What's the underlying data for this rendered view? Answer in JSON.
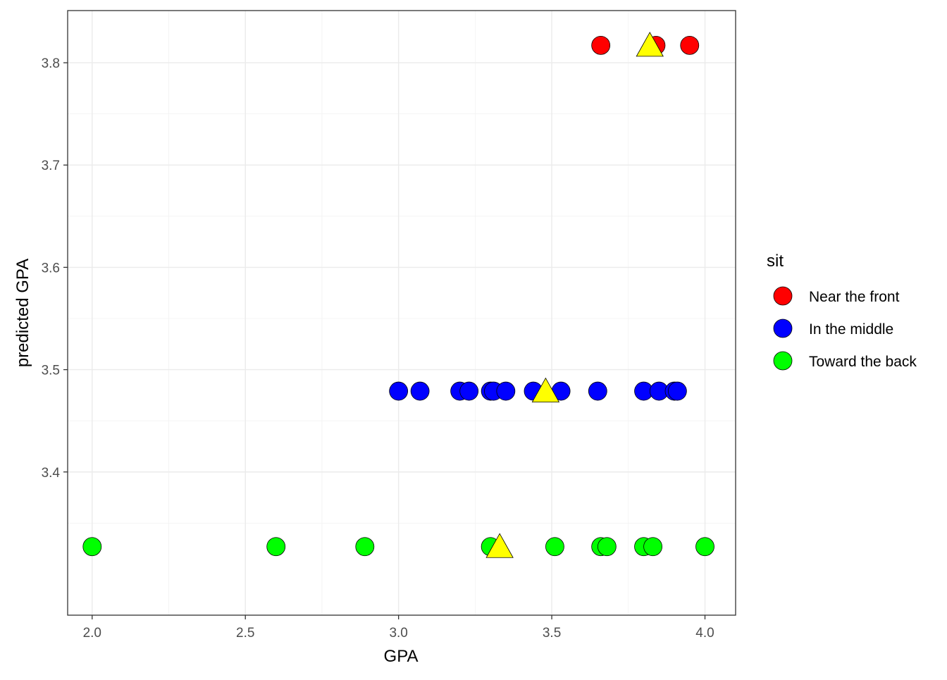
{
  "chart_data": {
    "type": "scatter",
    "title": "",
    "xlabel": "GPA",
    "ylabel": "predicted GPA",
    "xlim": [
      1.92,
      4.1
    ],
    "ylim": [
      3.26,
      3.851
    ],
    "xticks": [
      2.0,
      2.5,
      3.0,
      3.5,
      4.0
    ],
    "xtick_labels": [
      "2.0",
      "2.5",
      "3.0",
      "3.5",
      "4.0"
    ],
    "yticks": [
      3.4,
      3.5,
      3.6,
      3.7,
      3.8
    ],
    "ytick_labels": [
      "3.4",
      "3.5",
      "3.6",
      "3.7",
      "3.8"
    ],
    "grid": true,
    "legend": {
      "title": "sit",
      "placement": "right",
      "entries": [
        "Near the front",
        "In the middle",
        "Toward the back"
      ]
    },
    "series": [
      {
        "name": "Near the front",
        "color": "#ff0000",
        "marker": "circle",
        "x": [
          3.66,
          3.84,
          3.95
        ],
        "y": [
          3.817,
          3.817,
          3.817
        ]
      },
      {
        "name": "In the middle",
        "color": "#0000ff",
        "marker": "circle",
        "x": [
          3.0,
          3.07,
          3.2,
          3.23,
          3.3,
          3.31,
          3.35,
          3.44,
          3.53,
          3.65,
          3.8,
          3.85,
          3.9,
          3.91
        ],
        "y": [
          3.479,
          3.479,
          3.479,
          3.479,
          3.479,
          3.479,
          3.479,
          3.479,
          3.479,
          3.479,
          3.479,
          3.479,
          3.479,
          3.479
        ]
      },
      {
        "name": "Toward the back",
        "color": "#00ff00",
        "marker": "circle",
        "x": [
          2.0,
          2.6,
          2.89,
          3.3,
          3.51,
          3.66,
          3.68,
          3.8,
          3.83,
          4.0
        ],
        "y": [
          3.327,
          3.327,
          3.327,
          3.327,
          3.327,
          3.327,
          3.327,
          3.327,
          3.327,
          3.327
        ]
      },
      {
        "color": "#ffff00",
        "marker": "triangle",
        "x": [
          3.82,
          3.48,
          3.33
        ],
        "y": [
          3.818,
          3.48,
          3.328
        ]
      }
    ]
  }
}
